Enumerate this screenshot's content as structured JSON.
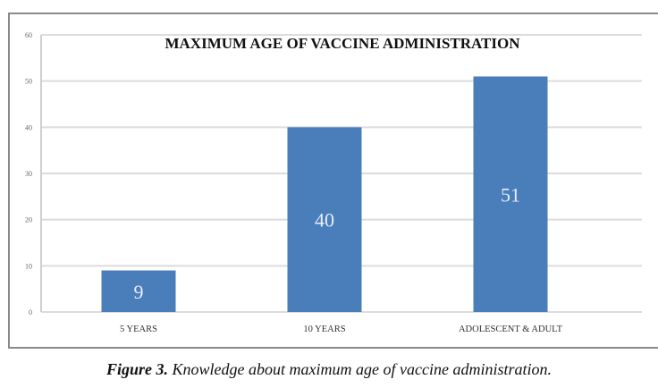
{
  "chart_data": {
    "type": "bar",
    "title": "MAXIMUM AGE OF VACCINE ADMINISTRATION",
    "categories": [
      "5 YEARS",
      "10 YEARS",
      "ADOLESCENT & ADULT"
    ],
    "values": [
      9,
      40,
      51
    ],
    "data_labels": [
      "9",
      "40",
      "51"
    ],
    "xlabel": "",
    "ylabel": "",
    "ylim": [
      0,
      60
    ],
    "yticks": [
      "0",
      "10",
      "20",
      "30",
      "40",
      "50",
      "60"
    ],
    "grid": true,
    "bar_color": "#4a7ebb"
  },
  "caption": {
    "label": "Figure 3.",
    "text": " Knowledge about maximum age of vaccine administration."
  }
}
